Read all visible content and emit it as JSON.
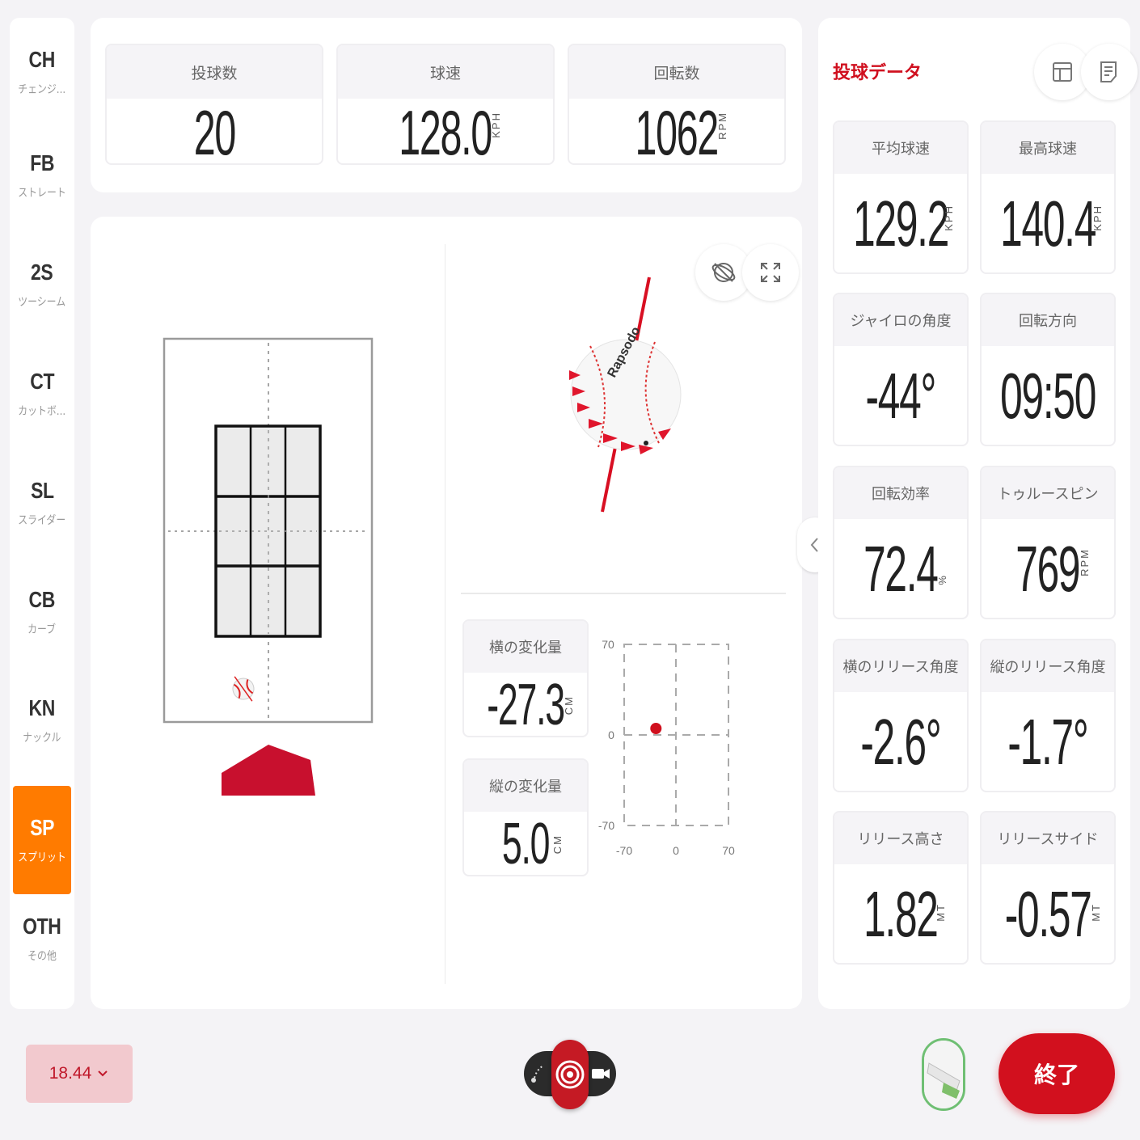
{
  "sidebar": {
    "items": [
      {
        "code": "CH",
        "label": "チェンジ..."
      },
      {
        "code": "FB",
        "label": "ストレート"
      },
      {
        "code": "2S",
        "label": "ツーシーム"
      },
      {
        "code": "CT",
        "label": "カットボ..."
      },
      {
        "code": "SL",
        "label": "スライダー"
      },
      {
        "code": "CB",
        "label": "カーブ"
      },
      {
        "code": "KN",
        "label": "ナックル"
      },
      {
        "code": "SP",
        "label": "スプリット"
      },
      {
        "code": "OTH",
        "label": "その他"
      }
    ],
    "selected": "SP"
  },
  "summary": {
    "pitches": {
      "label": "投球数",
      "value": "20"
    },
    "speed": {
      "label": "球速",
      "value": "128.0",
      "unit": "KPH"
    },
    "spin": {
      "label": "回転数",
      "value": "1062",
      "unit": "RPM"
    }
  },
  "movement": {
    "horizontal": {
      "label": "横の変化量",
      "value": "-27.3",
      "unit": "CM"
    },
    "vertical": {
      "label": "縦の変化量",
      "value": "5.0",
      "unit": "CM"
    },
    "plot": {
      "y_ticks": [
        "70",
        "0",
        "-70"
      ],
      "x_ticks": [
        "-70",
        "0",
        "70"
      ],
      "range": [
        -70,
        70
      ],
      "point": {
        "x": -27.3,
        "y": 5.0
      }
    }
  },
  "ball_brand": "Rapsodo",
  "pitch_data": {
    "title": "投球データ",
    "metrics": [
      {
        "label": "平均球速",
        "value": "129.2",
        "unit": "KPH"
      },
      {
        "label": "最高球速",
        "value": "140.4",
        "unit": "KPH"
      },
      {
        "label": "ジャイロの角度",
        "value": "-44°",
        "unit": ""
      },
      {
        "label": "回転方向",
        "value": "09:50",
        "unit": ""
      },
      {
        "label": "回転効率",
        "value": "72.4",
        "unit": "%"
      },
      {
        "label": "トゥルースピン",
        "value": "769",
        "unit": "RPM"
      },
      {
        "label": "横のリリース角度",
        "value": "-2.6°",
        "unit": ""
      },
      {
        "label": "縦のリリース角度",
        "value": "-1.7°",
        "unit": ""
      },
      {
        "label": "リリース高さ",
        "value": "1.82",
        "unit": "MT"
      },
      {
        "label": "リリースサイド",
        "value": "-0.57",
        "unit": "MT"
      }
    ]
  },
  "footer": {
    "distance": "18.44",
    "end_label": "終了"
  },
  "colors": {
    "accent": "#d2101e",
    "active": "#ff7b00",
    "plate": "#c8102e"
  },
  "icons": [
    "layout-icon",
    "notes-icon",
    "gyro-toggle-icon",
    "expand-icon",
    "collapse-left-icon",
    "chevron-down-icon",
    "trajectory-icon",
    "target-icon",
    "video-icon"
  ]
}
